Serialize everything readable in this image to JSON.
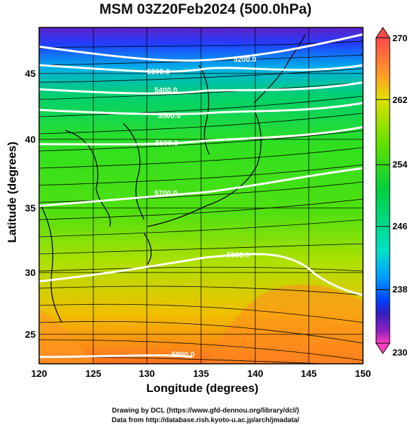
{
  "title": "MSM 03Z20Feb2024 (500.0hPa)",
  "axes": {
    "xlabel": "Longitude (degrees)",
    "ylabel": "Latitude  (degrees)",
    "x_ticks": [
      "120",
      "125",
      "130",
      "135",
      "140",
      "145",
      "150"
    ],
    "y_ticks": [
      "25",
      "30",
      "35",
      "40",
      "45"
    ]
  },
  "colorbar": {
    "ticks": [
      "270",
      "262",
      "254",
      "246",
      "238",
      "230"
    ],
    "colors": [
      "#ff4a4a",
      "#ff9a28",
      "#e0e000",
      "#60e000",
      "#00d040",
      "#00e0c8",
      "#00a0ff",
      "#0040ff",
      "#3020c0",
      "#9020c0",
      "#ff40c0"
    ]
  },
  "contours": [
    {
      "label": "5200.0"
    },
    {
      "label": "5300.0"
    },
    {
      "label": "5400.0"
    },
    {
      "label": "5500.0"
    },
    {
      "label": "5600.0"
    },
    {
      "label": "5700.0"
    },
    {
      "label": "5800.0"
    },
    {
      "label": "5900.0"
    }
  ],
  "credits": [
    "Drawing by DCL (https://www.gfd-dennou.org/library/dcl/)",
    "Data from http://database.rish.kyoto-u.ac.jp/arch/jmadata/"
  ]
}
